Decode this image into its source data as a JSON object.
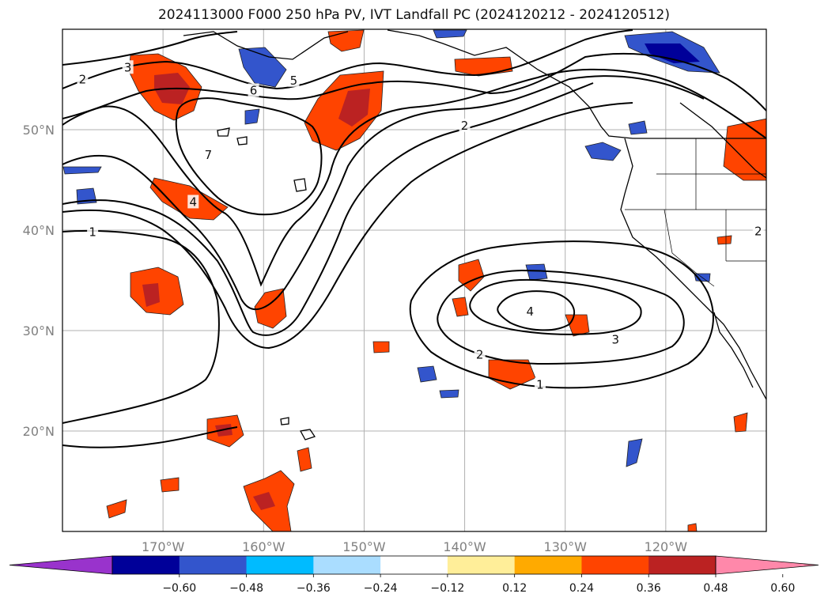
{
  "title": "2024113000 F000 250 hPa PV, IVT Landfall PC (2024120212 - 2024120512)",
  "map": {
    "lon_range": [
      -180,
      -110
    ],
    "lat_range": [
      10,
      60
    ],
    "lon_ticks": [
      {
        "lon": -170,
        "label": "170°W"
      },
      {
        "lon": -160,
        "label": "160°W"
      },
      {
        "lon": -150,
        "label": "150°W"
      },
      {
        "lon": -140,
        "label": "140°W"
      },
      {
        "lon": -130,
        "label": "130°W"
      },
      {
        "lon": -120,
        "label": "120°W"
      }
    ],
    "lat_ticks": [
      {
        "lat": 20,
        "label": "20°N"
      },
      {
        "lat": 30,
        "label": "30°N"
      },
      {
        "lat": 40,
        "label": "40°N"
      },
      {
        "lat": 50,
        "label": "50°N"
      }
    ],
    "gridlines": true,
    "contour_labels": [
      {
        "lon": -178,
        "lat": 55,
        "text": "2"
      },
      {
        "lon": -173.5,
        "lat": 56.2,
        "text": "3"
      },
      {
        "lon": -157,
        "lat": 54.9,
        "text": "5"
      },
      {
        "lon": -161,
        "lat": 53.9,
        "text": "6"
      },
      {
        "lon": -165.5,
        "lat": 47.5,
        "text": "7"
      },
      {
        "lon": -167,
        "lat": 42.8,
        "text": "4"
      },
      {
        "lon": -177,
        "lat": 39.8,
        "text": "1"
      },
      {
        "lon": -140,
        "lat": 50.4,
        "text": "2"
      },
      {
        "lon": -133.5,
        "lat": 31.9,
        "text": "4"
      },
      {
        "lon": -138.5,
        "lat": 27.6,
        "text": "2"
      },
      {
        "lon": -125,
        "lat": 29.1,
        "text": "3"
      },
      {
        "lon": -132.5,
        "lat": 24.6,
        "text": "1"
      },
      {
        "lon": -110.8,
        "lat": 39.9,
        "text": "2"
      }
    ]
  },
  "colorbar": {
    "colors": [
      "#9933cc",
      "#000099",
      "#3355cc",
      "#00bbff",
      "#aaddff",
      "#ffffff",
      "#ffee99",
      "#ffaa00",
      "#ff4400",
      "#bb2222",
      "#ff88aa"
    ],
    "tick_labels": [
      "−0.60",
      "−0.48",
      "−0.36",
      "−0.24",
      "−0.12",
      "0.12",
      "0.24",
      "0.36",
      "0.48",
      "0.60"
    ]
  }
}
